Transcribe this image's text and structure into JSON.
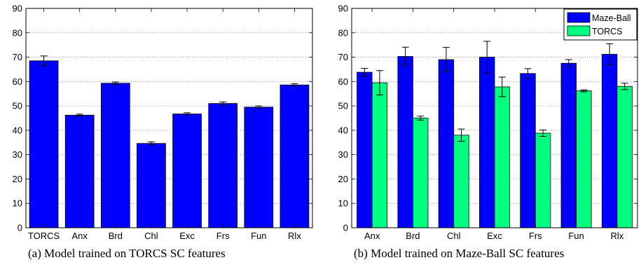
{
  "chart_data": [
    {
      "type": "bar",
      "caption": "(a) Model trained on TORCS SC features",
      "categories": [
        "TORCS",
        "Anx",
        "Brd",
        "Chl",
        "Exc",
        "Frs",
        "Fun",
        "Rlx"
      ],
      "series": [
        {
          "values": [
            68.5,
            46.2,
            59.3,
            34.6,
            46.7,
            51.0,
            49.5,
            58.6
          ],
          "errors": [
            2.0,
            0.4,
            0.5,
            0.6,
            0.5,
            0.6,
            0.5,
            0.5
          ],
          "color": "#0000ff"
        }
      ],
      "ylim": [
        0,
        90
      ],
      "yticks": [
        0,
        10,
        20,
        30,
        40,
        50,
        60,
        70,
        80,
        90
      ],
      "grid": true,
      "legend": "none"
    },
    {
      "type": "bar",
      "caption": "(b) Model trained on Maze-Ball SC features",
      "categories": [
        "Anx",
        "Brd",
        "Chl",
        "Exc",
        "Frs",
        "Fun",
        "Rlx"
      ],
      "series": [
        {
          "name": "Maze-Ball",
          "values": [
            63.8,
            70.3,
            69.0,
            70.0,
            63.3,
            67.5,
            71.2
          ],
          "errors": [
            1.6,
            3.8,
            5.0,
            6.5,
            2.0,
            1.5,
            4.3
          ],
          "color": "#0000ff"
        },
        {
          "name": "TORCS",
          "values": [
            59.5,
            45.0,
            38.0,
            57.8,
            38.8,
            56.2,
            58.0
          ],
          "errors": [
            5.0,
            0.8,
            2.5,
            4.0,
            1.3,
            0.4,
            1.3
          ],
          "color": "#00ff7f"
        }
      ],
      "ylim": [
        0,
        90
      ],
      "yticks": [
        0,
        10,
        20,
        30,
        40,
        50,
        60,
        70,
        80,
        90
      ],
      "grid": true,
      "legend": "top-right"
    }
  ]
}
